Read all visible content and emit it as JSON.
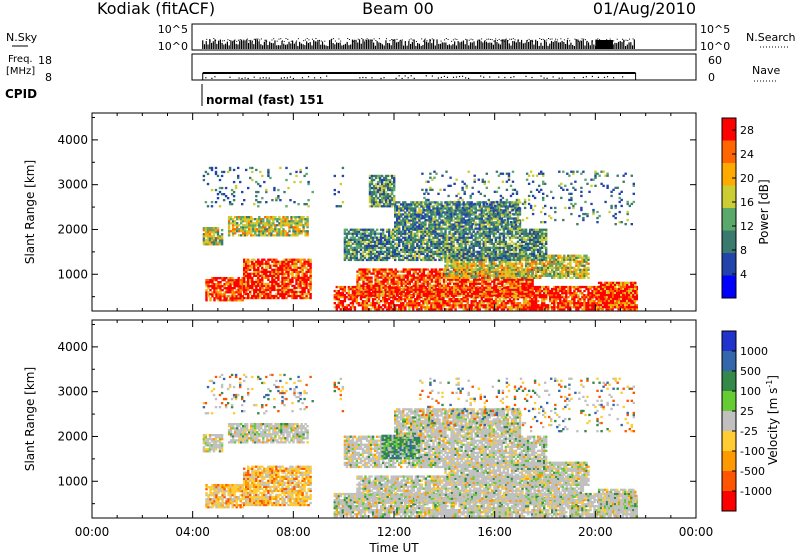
{
  "header": {
    "station": "Kodiak (fitACF)",
    "beam": "Beam 00",
    "date": "01/Aug/2010"
  },
  "params": {
    "nsky_label": "N.Sky",
    "nsearch_label": "N.Search",
    "freq_label_line1": "Freq.",
    "freq_label_line2": "[MHz]",
    "nave_label": "Nave",
    "cpid_label": "CPID",
    "cpid_value": "normal (fast) 151",
    "noise_ticks_left": [
      "10^5",
      "10^0"
    ],
    "noise_ticks_right": [
      "10^5",
      "10^0"
    ],
    "freq_ticks": [
      "18",
      "8"
    ],
    "nave_ticks": [
      "60",
      "0"
    ]
  },
  "chart_data": [
    {
      "type": "heatmap",
      "name": "power",
      "ylabel": "Slant Range [km]",
      "yticks": [
        1000,
        2000,
        3000,
        4000
      ],
      "ylim": [
        180,
        4600
      ],
      "colorbar": {
        "title": "Power [dB]",
        "ticks": [
          "4",
          "8",
          "12",
          "16",
          "20",
          "24",
          "28"
        ],
        "range": [
          0,
          30
        ],
        "colors": [
          "#0000ff",
          "#2244aa",
          "#3a7a6e",
          "#5aa86a",
          "#cccc33",
          "#ffaa00",
          "#ff6600",
          "#ff0000"
        ]
      },
      "regions": [
        {
          "t0": 4.4,
          "t1": 5.2,
          "r0": 1650,
          "r1": 2050,
          "level": "mid"
        },
        {
          "t0": 5.4,
          "t1": 8.6,
          "r0": 1850,
          "r1": 2300,
          "level": "mid"
        },
        {
          "t0": 4.5,
          "t1": 6.0,
          "r0": 400,
          "r1": 900,
          "level": "hot"
        },
        {
          "t0": 6.0,
          "t1": 8.7,
          "r0": 450,
          "r1": 1350,
          "level": "hot"
        },
        {
          "t0": 9.6,
          "t1": 21.6,
          "r0": 200,
          "r1": 700,
          "level": "hot"
        },
        {
          "t0": 10.5,
          "t1": 17.5,
          "r0": 500,
          "r1": 1100,
          "level": "hot"
        },
        {
          "t0": 14.0,
          "t1": 19.7,
          "r0": 900,
          "r1": 1400,
          "level": "mid"
        },
        {
          "t0": 10.0,
          "t1": 18.0,
          "r0": 1300,
          "r1": 2000,
          "level": "low"
        },
        {
          "t0": 12.0,
          "t1": 17.0,
          "r0": 2000,
          "r1": 2600,
          "level": "low"
        },
        {
          "t0": 20.1,
          "t1": 21.6,
          "r0": 250,
          "r1": 800,
          "level": "hot"
        },
        {
          "t0": 11.0,
          "t1": 12.0,
          "r0": 2500,
          "r1": 3200,
          "level": "low"
        },
        {
          "t0": 4.4,
          "t1": 10.0,
          "r0": 2500,
          "r1": 3400,
          "level": "sparse"
        },
        {
          "t0": 13.0,
          "t1": 21.5,
          "r0": 2100,
          "r1": 3300,
          "level": "sparse"
        }
      ]
    },
    {
      "type": "heatmap",
      "name": "velocity",
      "xlabel": "Time UT",
      "ylabel": "Slant Range [km]",
      "yticks": [
        1000,
        2000,
        3000,
        4000
      ],
      "ylim": [
        180,
        4600
      ],
      "xticks": [
        "00:00",
        "04:00",
        "08:00",
        "12:00",
        "16:00",
        "20:00",
        "00:00"
      ],
      "xlim": [
        0,
        24
      ],
      "colorbar": {
        "title": "Velocity [m s",
        "title_sup": "-1",
        "title_end": "]",
        "ticks": [
          "1000",
          "500",
          "100",
          "25",
          "-25",
          "-100",
          "-500",
          "-1000"
        ],
        "colors": [
          "#2233cc",
          "#3366aa",
          "#33884a",
          "#66cc33",
          "#c0c0c0",
          "#ffcc33",
          "#ff9900",
          "#ff5500",
          "#ff0000"
        ]
      },
      "regions": [
        {
          "t0": 4.4,
          "t1": 5.2,
          "r0": 1650,
          "r1": 2050,
          "level": "grey"
        },
        {
          "t0": 5.4,
          "t1": 8.6,
          "r0": 1850,
          "r1": 2300,
          "level": "grey"
        },
        {
          "t0": 4.5,
          "t1": 6.0,
          "r0": 400,
          "r1": 900,
          "level": "warm"
        },
        {
          "t0": 6.0,
          "t1": 8.7,
          "r0": 450,
          "r1": 1350,
          "level": "warm"
        },
        {
          "t0": 9.6,
          "t1": 21.6,
          "r0": 200,
          "r1": 700,
          "level": "grey"
        },
        {
          "t0": 10.5,
          "t1": 19.5,
          "r0": 500,
          "r1": 1100,
          "level": "grey"
        },
        {
          "t0": 14.0,
          "t1": 19.7,
          "r0": 900,
          "r1": 1400,
          "level": "grey"
        },
        {
          "t0": 10.0,
          "t1": 18.0,
          "r0": 1300,
          "r1": 2000,
          "level": "grey"
        },
        {
          "t0": 11.5,
          "t1": 13.0,
          "r0": 1500,
          "r1": 2000,
          "level": "green"
        },
        {
          "t0": 12.0,
          "t1": 17.0,
          "r0": 2000,
          "r1": 2600,
          "level": "grey"
        },
        {
          "t0": 20.1,
          "t1": 21.6,
          "r0": 250,
          "r1": 800,
          "level": "grey"
        },
        {
          "t0": 4.4,
          "t1": 10.0,
          "r0": 2500,
          "r1": 3400,
          "level": "sparse"
        },
        {
          "t0": 13.0,
          "t1": 21.5,
          "r0": 2100,
          "r1": 3300,
          "level": "sparse"
        }
      ]
    }
  ]
}
